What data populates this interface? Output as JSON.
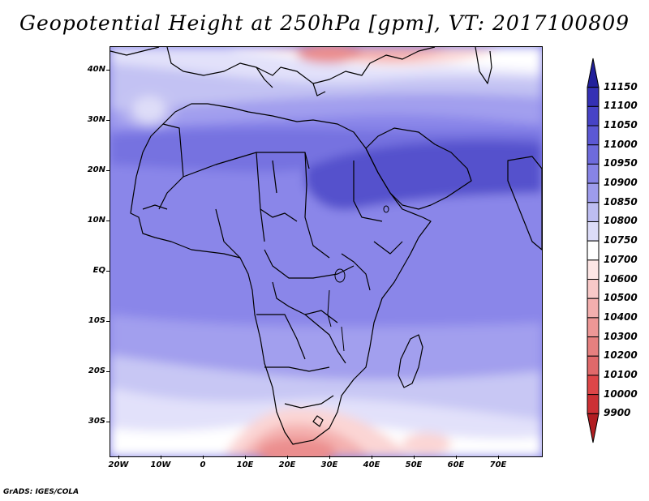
{
  "title": "Geopotential Height at 250hPa [gpm], VT: 2017100809",
  "credit": "GrADS: IGES/COLA",
  "axes": {
    "lat_ticks": [
      "40N",
      "30N",
      "20N",
      "10N",
      "EQ",
      "10S",
      "20S",
      "30S"
    ],
    "lon_ticks": [
      "20W",
      "10W",
      "0",
      "10E",
      "20E",
      "30E",
      "40E",
      "50E",
      "60E",
      "70E"
    ]
  },
  "chart_data": {
    "type": "heatmap",
    "title": "Geopotential Height at 250hPa [gpm], VT: 2017100809",
    "variable": "Geopotential Height at 250hPa",
    "units": "gpm",
    "valid_time": "2017100809",
    "lon_range": [
      -20,
      80
    ],
    "lat_range": [
      -37,
      45
    ],
    "colorbar": {
      "levels": [
        9900,
        10000,
        10100,
        10200,
        10300,
        10400,
        10500,
        10600,
        10700,
        10750,
        10800,
        10850,
        10900,
        10950,
        11000,
        11050,
        11100,
        11150
      ],
      "colors": [
        "#b11d21",
        "#cc3034",
        "#dd4648",
        "#e0696a",
        "#e6807f",
        "#ed9796",
        "#f3afae",
        "#f8c9c8",
        "#fde6e5",
        "#ffffff",
        "#dcdcf8",
        "#bdbdf1",
        "#9e9cec",
        "#8784e6",
        "#6e6bdc",
        "#5c58d4",
        "#4743c6",
        "#3430b4",
        "#22209a"
      ]
    }
  }
}
